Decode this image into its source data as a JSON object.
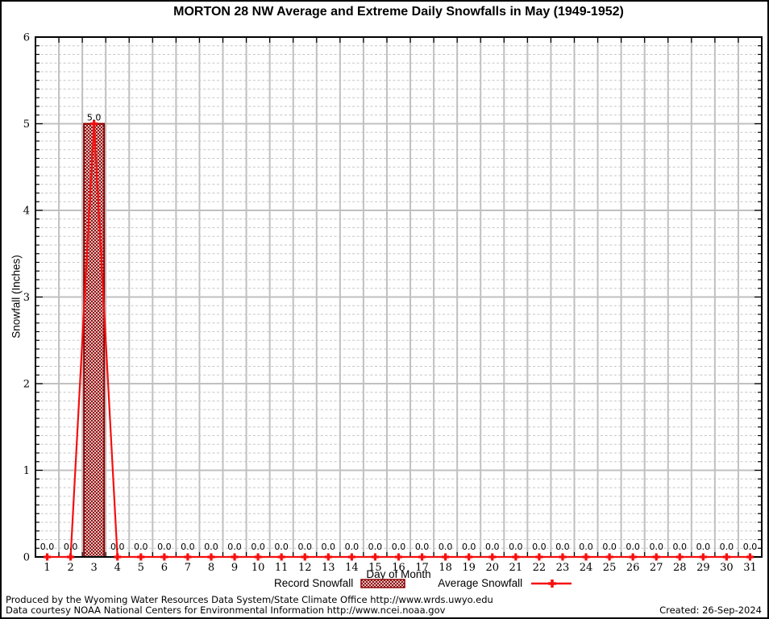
{
  "chart_data": {
    "type": "bar",
    "title": "MORTON 28 NW Average and Extreme Daily Snowfalls in May (1949-1952)",
    "xlabel": "Day of Month",
    "ylabel": "Snowfall (Inches)",
    "ylim": [
      0,
      6
    ],
    "y_major_step": 1,
    "y_minor_step": 0.1,
    "grid": true,
    "legend_position": "bottom",
    "categories": [
      1,
      2,
      3,
      4,
      5,
      6,
      7,
      8,
      9,
      10,
      11,
      12,
      13,
      14,
      15,
      16,
      17,
      18,
      19,
      20,
      21,
      22,
      23,
      24,
      25,
      26,
      27,
      28,
      29,
      30,
      31
    ],
    "series": [
      {
        "name": "Record Snowfall",
        "type": "bar",
        "values": [
          0.0,
          0.0,
          5.0,
          0.0,
          0.0,
          0.0,
          0.0,
          0.0,
          0.0,
          0.0,
          0.0,
          0.0,
          0.0,
          0.0,
          0.0,
          0.0,
          0.0,
          0.0,
          0.0,
          0.0,
          0.0,
          0.0,
          0.0,
          0.0,
          0.0,
          0.0,
          0.0,
          0.0,
          0.0,
          0.0,
          0.0
        ]
      },
      {
        "name": "Average Snowfall",
        "type": "line",
        "values": [
          0.0,
          0.0,
          5.0,
          0.0,
          0.0,
          0.0,
          0.0,
          0.0,
          0.0,
          0.0,
          0.0,
          0.0,
          0.0,
          0.0,
          0.0,
          0.0,
          0.0,
          0.0,
          0.0,
          0.0,
          0.0,
          0.0,
          0.0,
          0.0,
          0.0,
          0.0,
          0.0,
          0.0,
          0.0,
          0.0,
          0.0
        ]
      }
    ],
    "point_label_decimals": 1,
    "peak_label": "5.0",
    "zero_label": "0.0"
  },
  "colors": {
    "bar_border": "#8b0000",
    "bar_hatch": "#8b0000",
    "line": "#f50f0f",
    "marker": "#f50f0f",
    "grid_major": "#c0c0c0",
    "grid_minor": "#c6c6c6",
    "axis": "#000000",
    "text": "#000000"
  },
  "footer": {
    "line1": "Produced by the Wyoming Water Resources Data System/State Climate Office http://www.wrds.uwyo.edu",
    "line2": "Data courtesy NOAA National Centers for Environmental Information http://www.ncei.noaa.gov",
    "created": "Created: 26-Sep-2024"
  }
}
